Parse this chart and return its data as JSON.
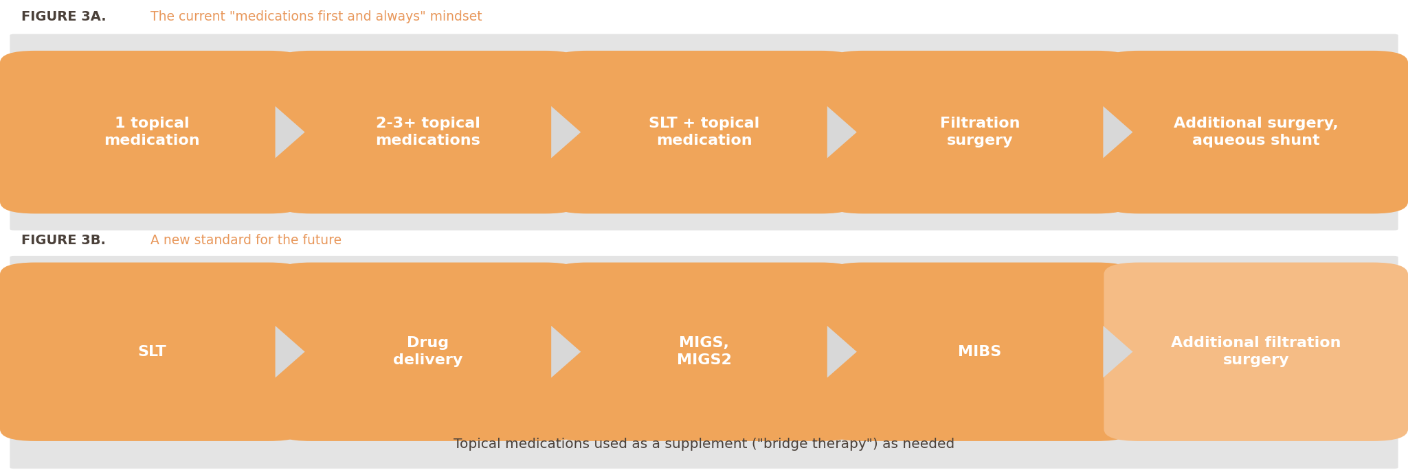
{
  "fig_width": 20.49,
  "fig_height": 6.88,
  "background_color": "#ffffff",
  "panel_bg_color": "#e4e4e4",
  "box_color_row1": "#f0a55a",
  "box_color_row2_normal": "#f0a55a",
  "box_color_row2_last": "#f5bc85",
  "box_text_color": "#ffffff",
  "chevron_color": "#d8d8d8",
  "title_bold_color": "#4a4039",
  "title_light_color": "#e8975a",
  "footnote_color": "#4a4039",
  "figure3a_bold": "FIGURE 3A.",
  "figure3a_light": " The current \"medications first and always\" mindset",
  "figure3b_bold": "FIGURE 3B.",
  "figure3b_light": " A new standard for the future",
  "footnote": "Topical medications used as a supplement (\"bridge therapy\") as needed",
  "row1_boxes": [
    "1 topical\nmedication",
    "2-3+ topical\nmedications",
    "SLT + topical\nmedication",
    "Filtration\nsurgery",
    "Additional surgery,\naqueous shunt"
  ],
  "row2_boxes": [
    "SLT",
    "Drug\ndelivery",
    "MIGS,\nMIGS2",
    "MIBS",
    "Additional filtration\nsurgery"
  ],
  "row2_box_colors": [
    "#f0a55a",
    "#f0a55a",
    "#f0a55a",
    "#f0a55a",
    "#f5bc85"
  ]
}
